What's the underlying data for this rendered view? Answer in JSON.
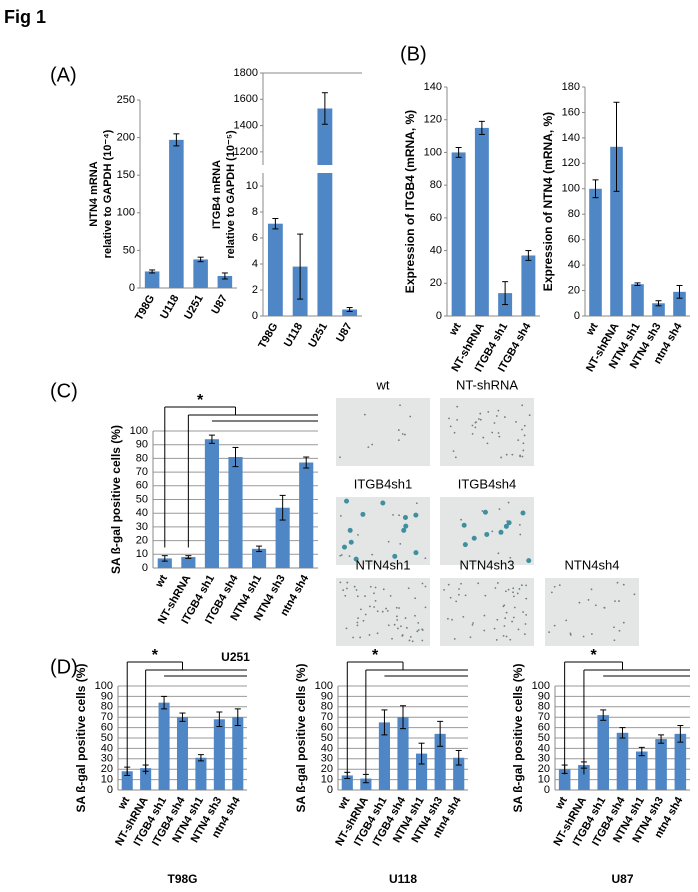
{
  "figure_title": "Fig 1",
  "panel_labels": [
    "(A)",
    "(B)",
    "(C)",
    "(D)"
  ],
  "micrographs": [
    {
      "label": "wt"
    },
    {
      "label": "NT-shRNA"
    },
    {
      "label": "ITGB4sh1"
    },
    {
      "label": "ITGB4sh4"
    },
    {
      "label": "NTN4sh1"
    },
    {
      "label": "NTN4sh3"
    },
    {
      "label": "NTN4sh4"
    }
  ],
  "chart_data": [
    {
      "type": "bar",
      "ylabel": [
        "NTN4 mRNA",
        "relative to GAPDH (10⁻⁴)"
      ],
      "categories": [
        "T98G",
        "U118",
        "U251",
        "U87"
      ],
      "values": [
        22,
        197,
        38,
        16
      ],
      "errors": [
        2,
        8,
        3,
        4
      ],
      "color": "#4f86c6",
      "ylim": [
        0,
        250
      ],
      "yticks": [
        0,
        50,
        100,
        150,
        200,
        250
      ],
      "grid": false
    },
    {
      "type": "bar",
      "ylabel": [
        "ITGB4 mRNA",
        "relative to GAPDH (10⁻⁵)"
      ],
      "categories": [
        "T98G",
        "U118",
        "U251",
        "U87"
      ],
      "values": [
        7.1,
        3.8,
        1530,
        0.5
      ],
      "errors": [
        0.4,
        2.5,
        120,
        0.15
      ],
      "color": "#4f86c6",
      "ylim": [
        0,
        11
      ],
      "yticks": [
        0,
        2,
        4,
        6,
        8,
        10
      ],
      "y_break": {
        "ylim": [
          1100,
          1800
        ],
        "yticks": [
          1200,
          1400,
          1600,
          1800
        ]
      },
      "grid": false
    },
    {
      "type": "bar",
      "ylabel": "Expression of ITGB4 (mRNA, %)",
      "categories": [
        "wt",
        "NT-shRNA",
        "ITGB4 sh1",
        "ITGB4 sh4"
      ],
      "values": [
        100,
        115,
        14,
        37
      ],
      "errors": [
        3,
        4,
        7,
        3
      ],
      "color": "#4f86c6",
      "ylim": [
        0,
        140
      ],
      "yticks": [
        0,
        20,
        40,
        60,
        80,
        100,
        120,
        140
      ],
      "grid": false
    },
    {
      "type": "bar",
      "ylabel": "Expression of NTN4 (mRNA, %)",
      "categories": [
        "wt",
        "NT-shRNA",
        "NTN4 sh1",
        "NTN4 sh3",
        "ntn4 sh4"
      ],
      "values": [
        100,
        133,
        25,
        10,
        19
      ],
      "errors": [
        7,
        35,
        1,
        2,
        5
      ],
      "color": "#4f86c6",
      "ylim": [
        0,
        180
      ],
      "yticks": [
        0,
        20,
        40,
        60,
        80,
        100,
        120,
        140,
        160,
        180
      ],
      "grid": false
    },
    {
      "type": "bar",
      "ylabel": "SA ß-gal positive cells (%)",
      "xlabel": "U251",
      "annotation": "*",
      "categories": [
        "wt",
        "NT-shRNA",
        "ITGB4 sh1",
        "ITGB4 sh4",
        "NTN4 sh1",
        "NTN4 sh3",
        "ntn4 sh4"
      ],
      "values": [
        7,
        8,
        94,
        81,
        14,
        44,
        77
      ],
      "errors": [
        2,
        1,
        3,
        7,
        2,
        9,
        4
      ],
      "color": "#4f86c6",
      "ylim": [
        0,
        100
      ],
      "yticks": [
        0,
        10,
        20,
        30,
        40,
        50,
        60,
        70,
        80,
        90,
        100
      ],
      "grid": true
    },
    {
      "type": "bar",
      "ylabel": "SA ß-gal positive cells (%)",
      "xlabel": "T98G",
      "annotation": "*",
      "categories": [
        "wt",
        "NT-shRNA",
        "ITGB4 sh1",
        "ITGB4 sh4",
        "NTN4 sh1",
        "NTN4 sh3",
        "ntn4 sh4"
      ],
      "values": [
        18,
        21,
        84,
        70,
        31,
        68,
        70
      ],
      "errors": [
        4,
        3,
        6,
        4,
        3,
        7,
        8
      ],
      "color": "#4f86c6",
      "ylim": [
        0,
        100
      ],
      "yticks": [
        0,
        10,
        20,
        30,
        40,
        50,
        60,
        70,
        80,
        90,
        100
      ],
      "grid": true
    },
    {
      "type": "bar",
      "ylabel": "SA ß-gal positive cells (%)",
      "xlabel": "U118",
      "annotation": "*",
      "categories": [
        "wt",
        "NT-shRNA",
        "ITGB4 sh1",
        "ITGB4 sh4",
        "NTN4 sh1",
        "NTN4 sh3",
        "ntn4 sh4"
      ],
      "values": [
        14,
        11,
        65,
        70,
        35,
        54,
        31
      ],
      "errors": [
        3,
        4,
        12,
        11,
        10,
        12,
        7
      ],
      "color": "#4f86c6",
      "ylim": [
        0,
        100
      ],
      "yticks": [
        0,
        10,
        20,
        30,
        40,
        50,
        60,
        70,
        80,
        90,
        100
      ],
      "grid": true
    },
    {
      "type": "bar",
      "ylabel": "SA ß-gal positive cells (%)",
      "xlabel": "U87",
      "annotation": "*",
      "categories": [
        "wt",
        "NT-shRNA",
        "ITGB4 sh1",
        "ITGB4 sh4",
        "NTN4 sh1",
        "NTN4 sh3",
        "ntn4 sh4"
      ],
      "values": [
        20,
        24,
        72,
        55,
        37,
        49,
        54
      ],
      "errors": [
        4,
        3,
        5,
        5,
        4,
        4,
        8
      ],
      "color": "#4f86c6",
      "ylim": [
        0,
        100
      ],
      "yticks": [
        0,
        10,
        20,
        30,
        40,
        50,
        60,
        70,
        80,
        90,
        100
      ],
      "grid": true
    }
  ]
}
